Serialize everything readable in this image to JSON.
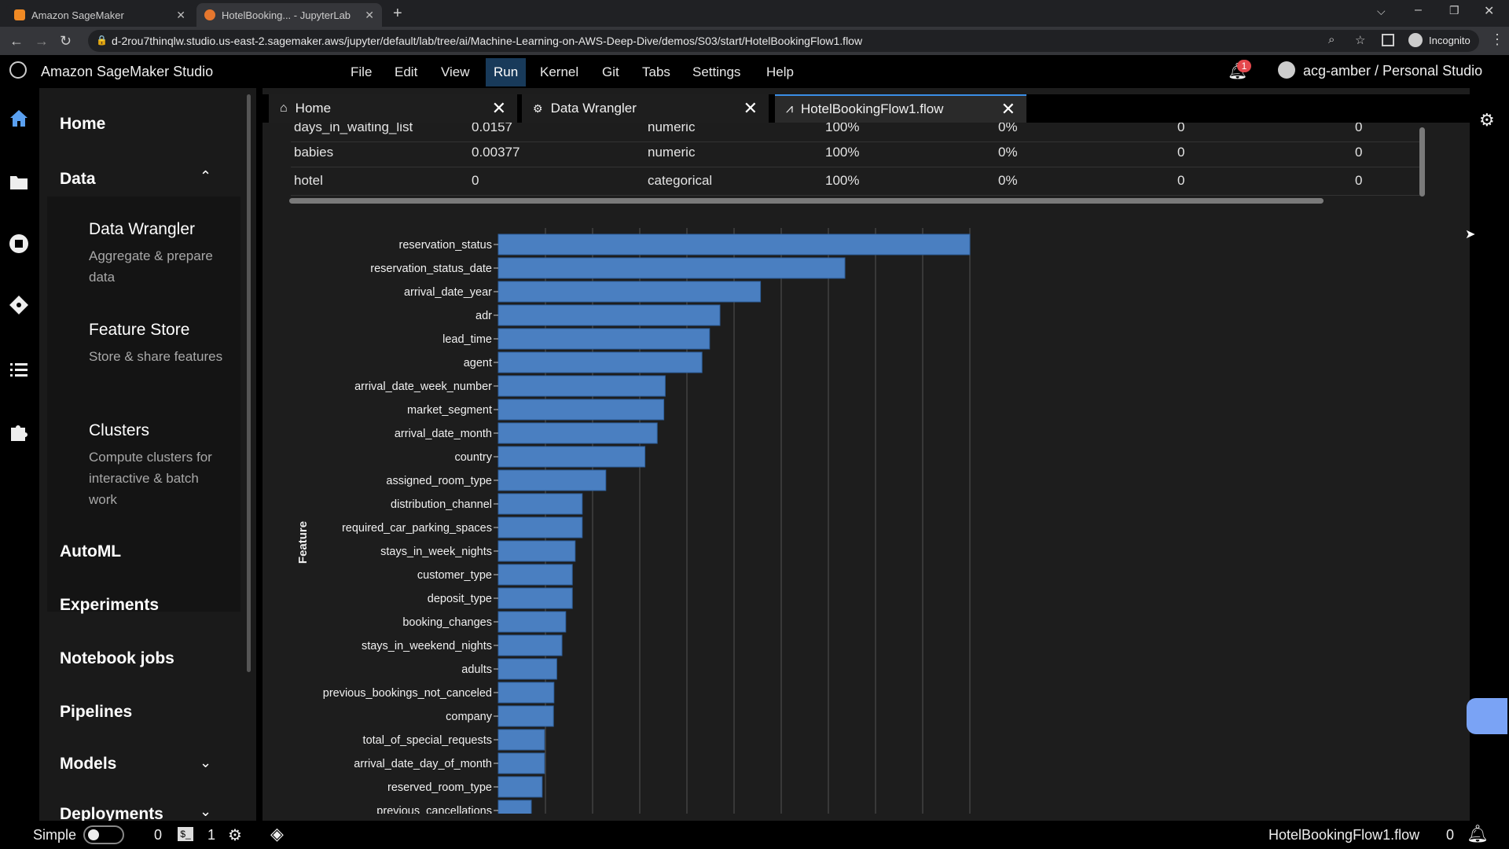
{
  "browser": {
    "tabs": [
      {
        "title": "Amazon SageMaker",
        "favicon_color": "#f08a24"
      },
      {
        "title": "HotelBooking... - JupyterLab",
        "favicon_color": "#e6772e"
      }
    ],
    "url": "d-2rou7thinqlw.studio.us-east-2.sagemaker.aws/jupyter/default/lab/tree/ai/Machine-Learning-on-AWS-Deep-Dive/demos/S03/start/HotelBookingFlow1.flow",
    "incognito_label": "Incognito"
  },
  "studio": {
    "app_title": "Amazon SageMaker Studio",
    "menu": [
      "File",
      "Edit",
      "View",
      "Run",
      "Kernel",
      "Git",
      "Tabs",
      "Settings",
      "Help"
    ],
    "active_menu": "Run",
    "notification_count": "1",
    "user_label": "acg-amber / Personal Studio"
  },
  "sidebar": {
    "home": "Home",
    "data": "Data",
    "data_items": [
      {
        "title": "Data Wrangler",
        "desc": "Aggregate & prepare data"
      },
      {
        "title": "Feature Store",
        "desc": "Store & share features"
      },
      {
        "title": "Clusters",
        "desc": "Compute clusters for interactive & batch work"
      }
    ],
    "sections": [
      "AutoML",
      "Experiments",
      "Notebook jobs",
      "Pipelines",
      "Models",
      "Deployments"
    ]
  },
  "doc_tabs": [
    {
      "label": "Home"
    },
    {
      "label": "Data Wrangler"
    },
    {
      "label": "HotelBookingFlow1.flow"
    }
  ],
  "table": {
    "rows": [
      {
        "name": "days_in_waiting_list",
        "v": "0.0157",
        "type": "numeric",
        "valid": "100%",
        "missing": "0%",
        "c5": "0",
        "c6": "0"
      },
      {
        "name": "babies",
        "v": "0.00377",
        "type": "numeric",
        "valid": "100%",
        "missing": "0%",
        "c5": "0",
        "c6": "0"
      },
      {
        "name": "hotel",
        "v": "0",
        "type": "categorical",
        "valid": "100%",
        "missing": "0%",
        "c5": "0",
        "c6": "0"
      }
    ]
  },
  "chart_data": {
    "type": "bar",
    "orientation": "horizontal",
    "ylabel": "Feature",
    "categories": [
      "reservation_status",
      "reservation_status_date",
      "arrival_date_year",
      "adr",
      "lead_time",
      "agent",
      "arrival_date_week_number",
      "market_segment",
      "arrival_date_month",
      "country",
      "assigned_room_type",
      "distribution_channel",
      "required_car_parking_spaces",
      "stays_in_week_nights",
      "customer_type",
      "deposit_type",
      "booking_changes",
      "stays_in_weekend_nights",
      "adults",
      "previous_bookings_not_canceled",
      "company",
      "total_of_special_requests",
      "arrival_date_day_of_month",
      "reserved_room_type",
      "previous_cancellations"
    ],
    "values": [
      1.0,
      0.735,
      0.556,
      0.47,
      0.448,
      0.432,
      0.354,
      0.351,
      0.337,
      0.311,
      0.228,
      0.178,
      0.178,
      0.163,
      0.157,
      0.157,
      0.143,
      0.135,
      0.124,
      0.118,
      0.117,
      0.098,
      0.098,
      0.093,
      0.07
    ],
    "xlim": [
      0,
      1.0
    ],
    "grid": true,
    "bar_color": "#4a7fc1"
  },
  "statusbar": {
    "mode_label": "Simple",
    "count_a": "0",
    "count_b": "1",
    "file": "HotelBookingFlow1.flow",
    "count_c": "0"
  }
}
